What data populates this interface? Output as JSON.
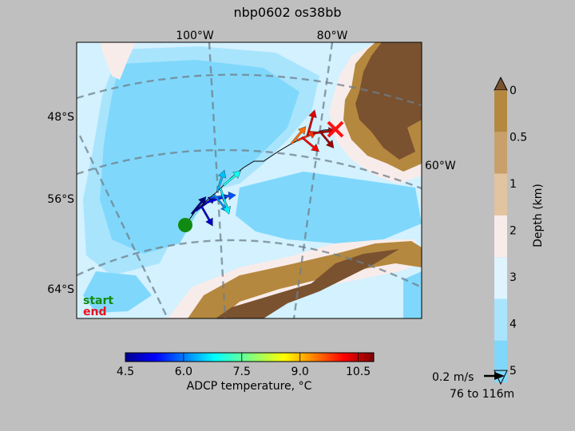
{
  "chart_data": {
    "type": "map",
    "title": "nbp0602 os38bb",
    "map": {
      "lon_labels": [
        "100°W",
        "80°W",
        "60°W"
      ],
      "lat_labels": [
        "48°S",
        "56°S",
        "64°S"
      ],
      "legend_start": "start",
      "legend_end": "end",
      "start_color": "#118a11",
      "end_color": "#e8121a"
    },
    "depth_colorbar": {
      "label": "Depth (km)",
      "ticks": [
        "0",
        "0.5",
        "1",
        "2",
        "3",
        "4",
        "5"
      ],
      "colors": [
        "#b5883f",
        "#c9a06a",
        "#e2c4a0",
        "#f8ecea",
        "#dff4ff",
        "#a9e4fd",
        "#7fd8fb"
      ],
      "extend_top_color": "#7a5230"
    },
    "temperature_colorbar": {
      "label": "ADCP temperature, °C",
      "ticks": [
        "4.5",
        "6.0",
        "7.5",
        "9.0",
        "10.5"
      ],
      "min": 4.5,
      "max": 10.9
    },
    "vector_key": {
      "speed_label": "0.2 m/s",
      "depth_range": "76 to 116m"
    },
    "track_vectors": [
      {
        "temp": 4.5,
        "u": 0.1,
        "v": 0.12
      },
      {
        "temp": 4.7,
        "u": 0.14,
        "v": 0.1
      },
      {
        "temp": 5.0,
        "u": 0.08,
        "v": -0.14
      },
      {
        "temp": 5.3,
        "u": 0.16,
        "v": 0.05
      },
      {
        "temp": 5.8,
        "u": 0.18,
        "v": 0.02
      },
      {
        "temp": 6.2,
        "u": 0.1,
        "v": -0.12
      },
      {
        "temp": 6.5,
        "u": 0.05,
        "v": 0.15
      },
      {
        "temp": 6.8,
        "u": 0.06,
        "v": -0.18
      },
      {
        "temp": 7.0,
        "u": 0.12,
        "v": 0.1
      },
      {
        "temp": 9.4,
        "u": 0.1,
        "v": 0.12
      },
      {
        "temp": 9.8,
        "u": 0.14,
        "v": 0.06
      },
      {
        "temp": 10.1,
        "u": 0.12,
        "v": -0.1
      },
      {
        "temp": 10.3,
        "u": 0.05,
        "v": 0.18
      },
      {
        "temp": 10.5,
        "u": 0.16,
        "v": 0.02
      },
      {
        "temp": 10.7,
        "u": 0.1,
        "v": -0.12
      }
    ]
  }
}
